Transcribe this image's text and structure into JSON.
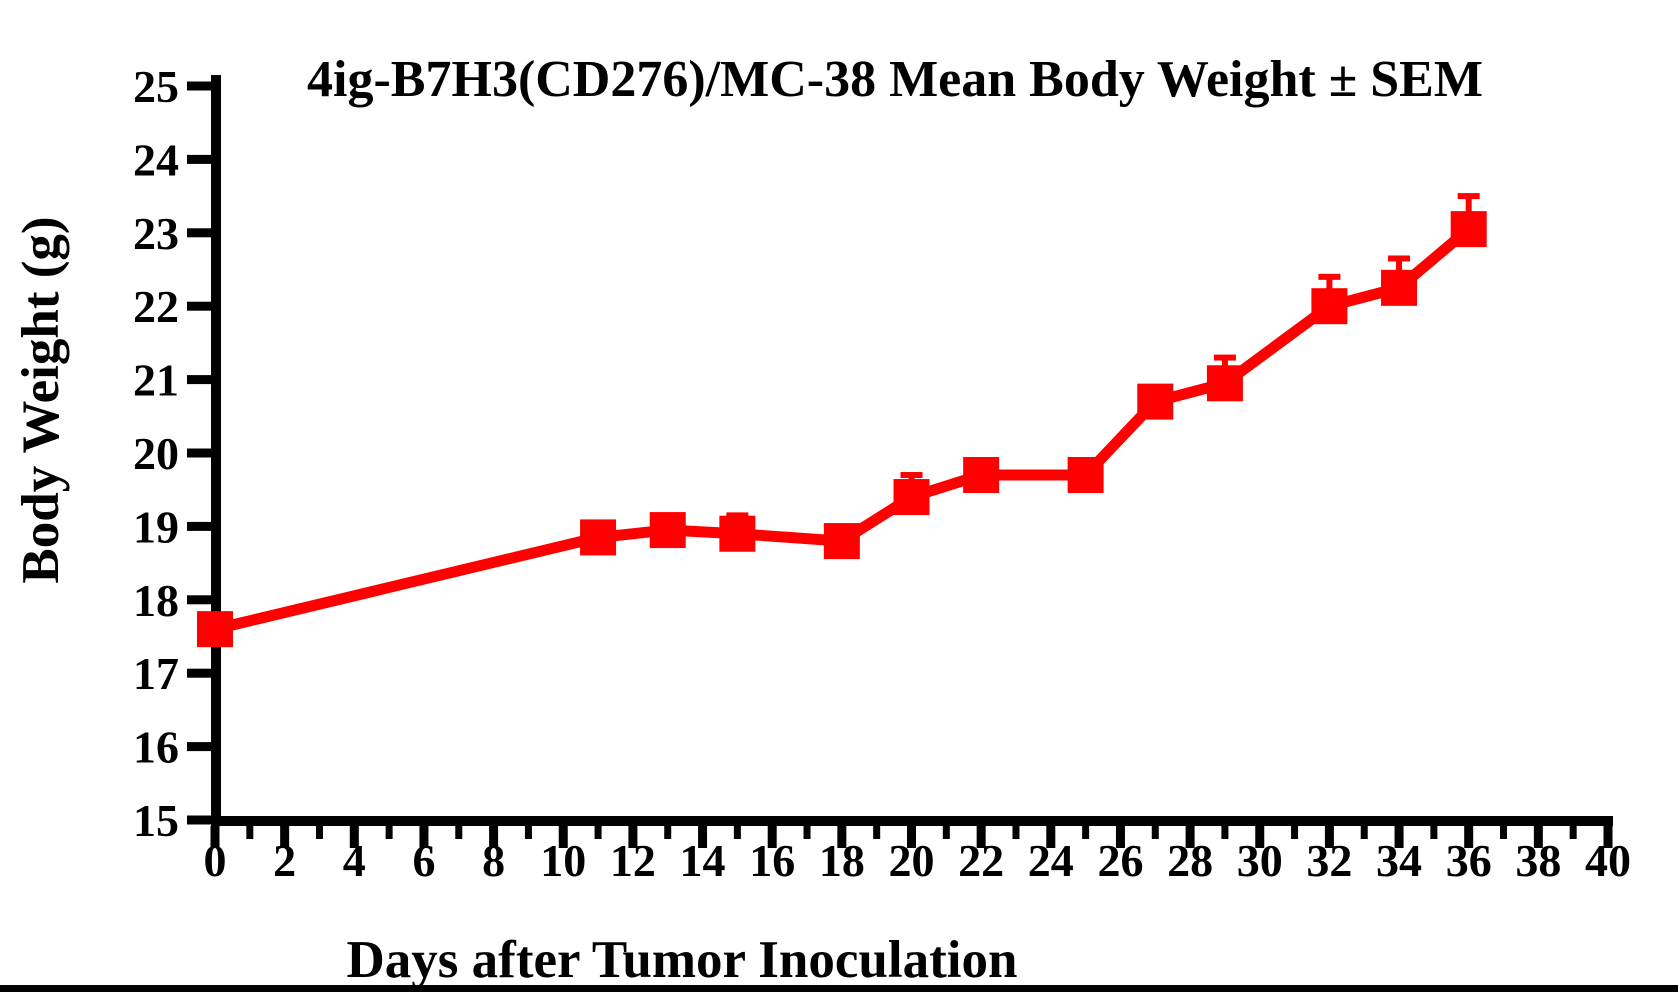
{
  "chart_data": {
    "type": "line",
    "title": "4ig-B7H3(CD276)/MC-38 Mean Body Weight ± SEM",
    "xlabel": "Days after Tumor Inoculation",
    "ylabel": "Body Weight (g)",
    "xlim": [
      0,
      40
    ],
    "ylim": [
      15,
      25
    ],
    "x_tick_labels": [
      0,
      2,
      4,
      6,
      8,
      10,
      12,
      14,
      16,
      18,
      20,
      22,
      24,
      26,
      28,
      30,
      32,
      34,
      36,
      38,
      40
    ],
    "x_minor_tick_interval": 1,
    "y_tick_labels": [
      15,
      16,
      17,
      18,
      19,
      20,
      21,
      22,
      23,
      24,
      25
    ],
    "grid": false,
    "legend": "none",
    "error_bars": "SEM, upward only",
    "series": [
      {
        "name": "Mean Body Weight",
        "color": "#FF0000",
        "marker": "filled-square",
        "days": [
          0,
          11,
          13,
          15,
          18,
          20,
          22,
          25,
          27,
          29,
          32,
          34,
          36
        ],
        "weights_g": [
          17.6,
          18.85,
          18.95,
          18.9,
          18.8,
          19.4,
          19.7,
          19.7,
          20.7,
          20.95,
          22.0,
          22.25,
          23.05
        ],
        "sem_upper": [
          0,
          0,
          0,
          0.25,
          0,
          0.3,
          0,
          0,
          0,
          0.35,
          0.4,
          0.4,
          0.45
        ]
      }
    ],
    "colors": {
      "series": "#FF0000",
      "axis": "#000000",
      "background": "#FFFFFF"
    }
  }
}
